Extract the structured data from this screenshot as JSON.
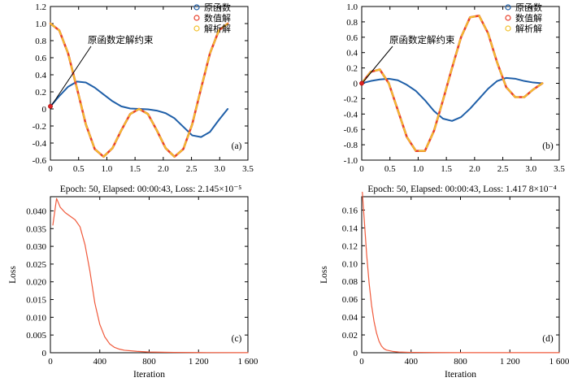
{
  "chart_data": [
    {
      "type": "line",
      "panel_label": "(a)",
      "xlim": [
        0,
        3.5
      ],
      "ylim": [
        -0.6,
        1.2
      ],
      "xticks": [
        0,
        0.5,
        1.0,
        1.5,
        2.0,
        2.5,
        3.0,
        3.5
      ],
      "yticks": [
        -0.6,
        -0.4,
        -0.2,
        0,
        0.2,
        0.4,
        0.6,
        0.8,
        1.0,
        1.2
      ],
      "xtick_labels": [
        "0",
        "0.5",
        "1.0",
        "1.5",
        "2.0",
        "2.5",
        "3.0",
        "3.5"
      ],
      "ytick_labels": [
        "-0.6",
        "-0.4",
        "-0.2",
        "0",
        "0.2",
        "0.4",
        "0.6",
        "0.8",
        "1.0",
        "1.2"
      ],
      "legend": [
        "原函数",
        "数值解",
        "解析解"
      ],
      "legend_position": "top-right",
      "annotation": "原函数定解约束",
      "annotation_point": [
        0,
        0.03
      ],
      "series": [
        {
          "name": "原函数",
          "x": [
            0,
            0.157,
            0.314,
            0.471,
            0.628,
            0.785,
            0.942,
            1.1,
            1.257,
            1.414,
            1.571,
            1.728,
            1.885,
            2.042,
            2.199,
            2.356,
            2.513,
            2.67,
            2.827,
            2.985,
            3.142
          ],
          "values": [
            0.03,
            0.15,
            0.26,
            0.32,
            0.31,
            0.25,
            0.17,
            0.09,
            0.03,
            0.005,
            0.0,
            -0.005,
            -0.02,
            -0.05,
            -0.11,
            -0.21,
            -0.31,
            -0.33,
            -0.27,
            -0.13,
            0.0
          ]
        },
        {
          "name": "数值解",
          "x": [
            0,
            0.157,
            0.314,
            0.471,
            0.628,
            0.785,
            0.942,
            1.1,
            1.257,
            1.414,
            1.571,
            1.728,
            1.885,
            2.042,
            2.199,
            2.356,
            2.513,
            2.67,
            2.827,
            2.985,
            3.142
          ],
          "values": [
            1.0,
            0.92,
            0.65,
            0.24,
            -0.18,
            -0.47,
            -0.56,
            -0.46,
            -0.25,
            -0.06,
            0.0,
            -0.06,
            -0.25,
            -0.46,
            -0.56,
            -0.47,
            -0.18,
            0.24,
            0.65,
            0.92,
            1.0
          ]
        },
        {
          "name": "解析解",
          "x": [
            0,
            0.157,
            0.314,
            0.471,
            0.628,
            0.785,
            0.942,
            1.1,
            1.257,
            1.414,
            1.571,
            1.728,
            1.885,
            2.042,
            2.199,
            2.356,
            2.513,
            2.67,
            2.827,
            2.985,
            3.142
          ],
          "values": [
            1.0,
            0.92,
            0.65,
            0.24,
            -0.18,
            -0.47,
            -0.56,
            -0.46,
            -0.25,
            -0.06,
            0.0,
            -0.06,
            -0.25,
            -0.46,
            -0.56,
            -0.47,
            -0.18,
            0.24,
            0.65,
            0.92,
            1.0
          ]
        }
      ]
    },
    {
      "type": "line",
      "panel_label": "(b)",
      "xlim": [
        0,
        3.5
      ],
      "ylim": [
        -1.0,
        1.0
      ],
      "xticks": [
        0,
        0.5,
        1.0,
        1.5,
        2.0,
        2.5,
        3.0,
        3.5
      ],
      "yticks": [
        -1.0,
        -0.8,
        -0.6,
        -0.4,
        -0.2,
        0,
        0.2,
        0.4,
        0.6,
        0.8,
        1.0
      ],
      "xtick_labels": [
        "0",
        "0.5",
        "1.0",
        "1.5",
        "2.0",
        "2.5",
        "3.0",
        "3.5"
      ],
      "ytick_labels": [
        "-1.0",
        "-0.8",
        "-0.6",
        "-0.4",
        "-0.2",
        "0",
        "0.2",
        "0.4",
        "0.6",
        "0.8",
        "1.0"
      ],
      "legend": [
        "原函数",
        "数值解",
        "解析解"
      ],
      "legend_position": "top-right",
      "annotation": "原函数定解约束",
      "annotation_point": [
        0,
        0.0
      ],
      "series": [
        {
          "name": "原函数",
          "x": [
            0,
            0.16,
            0.32,
            0.48,
            0.64,
            0.8,
            0.96,
            1.12,
            1.28,
            1.44,
            1.6,
            1.76,
            1.92,
            2.08,
            2.24,
            2.4,
            2.56,
            2.72,
            2.88,
            3.04,
            3.2
          ],
          "values": [
            0.0,
            0.03,
            0.05,
            0.06,
            0.04,
            -0.02,
            -0.1,
            -0.22,
            -0.36,
            -0.46,
            -0.49,
            -0.44,
            -0.33,
            -0.2,
            -0.07,
            0.03,
            0.07,
            0.06,
            0.03,
            0.01,
            0.0
          ]
        },
        {
          "name": "数值解",
          "x": [
            0,
            0.16,
            0.32,
            0.48,
            0.64,
            0.8,
            0.96,
            1.12,
            1.28,
            1.44,
            1.6,
            1.76,
            1.92,
            2.08,
            2.24,
            2.4,
            2.56,
            2.72,
            2.88,
            3.04,
            3.2
          ],
          "values": [
            0.0,
            0.15,
            0.18,
            0.0,
            -0.35,
            -0.7,
            -0.88,
            -0.88,
            -0.62,
            -0.22,
            0.2,
            0.6,
            0.86,
            0.88,
            0.65,
            0.27,
            -0.05,
            -0.18,
            -0.18,
            -0.08,
            0.0
          ]
        },
        {
          "name": "解析解",
          "x": [
            0,
            0.16,
            0.32,
            0.48,
            0.64,
            0.8,
            0.96,
            1.12,
            1.28,
            1.44,
            1.6,
            1.76,
            1.92,
            2.08,
            2.24,
            2.4,
            2.56,
            2.72,
            2.88,
            3.04,
            3.2
          ],
          "values": [
            0.0,
            0.15,
            0.18,
            0.0,
            -0.35,
            -0.7,
            -0.88,
            -0.88,
            -0.62,
            -0.22,
            0.2,
            0.6,
            0.86,
            0.88,
            0.65,
            0.27,
            -0.05,
            -0.18,
            -0.18,
            -0.08,
            0.0
          ]
        }
      ]
    },
    {
      "type": "line",
      "panel_label": "(c)",
      "title": "Epoch: 50, Elapsed: 00:00:43, Loss: 2.145×10⁻⁵",
      "xlabel": "Iteration",
      "ylabel": "Loss",
      "xlim": [
        0,
        1600
      ],
      "ylim": [
        0,
        0.044
      ],
      "xticks": [
        0,
        400,
        800,
        1200,
        1600
      ],
      "yticks": [
        0,
        0.005,
        0.01,
        0.015,
        0.02,
        0.025,
        0.03,
        0.035,
        0.04
      ],
      "xtick_labels": [
        "0",
        "400",
        "800",
        "1 200",
        "1 600"
      ],
      "ytick_labels": [
        "0",
        "0.005",
        "0.010",
        "0.015",
        "0.020",
        "0.025",
        "0.030",
        "0.035",
        "0.040"
      ],
      "series": [
        {
          "x": [
            20,
            50,
            80,
            120,
            160,
            200,
            240,
            280,
            320,
            360,
            400,
            440,
            480,
            520,
            560,
            600,
            700,
            800,
            1000,
            1200,
            1600
          ],
          "values": [
            0.036,
            0.0435,
            0.041,
            0.0395,
            0.0385,
            0.0375,
            0.0355,
            0.0305,
            0.023,
            0.014,
            0.008,
            0.0045,
            0.0025,
            0.0015,
            0.001,
            0.0007,
            0.0004,
            0.0002,
            0.0001,
            5e-05,
            2e-05
          ]
        }
      ]
    },
    {
      "type": "line",
      "panel_label": "(d)",
      "title": "Epoch: 50, Elapsed: 00:00:43, Loss: 1.417 8×10⁻⁴",
      "xlabel": "Iteration",
      "ylabel": "Loss",
      "xlim": [
        0,
        1600
      ],
      "ylim": [
        0,
        0.175
      ],
      "xticks": [
        0,
        400,
        800,
        1200,
        1600
      ],
      "yticks": [
        0,
        0.02,
        0.04,
        0.06,
        0.08,
        0.1,
        0.12,
        0.14,
        0.16
      ],
      "xtick_labels": [
        "0",
        "400",
        "800",
        "1 200",
        "1 600"
      ],
      "ytick_labels": [
        "0",
        "0.02",
        "0.04",
        "0.06",
        "0.08",
        "0.10",
        "0.12",
        "0.14",
        "0.16"
      ],
      "series": [
        {
          "x": [
            5,
            20,
            40,
            60,
            80,
            100,
            120,
            140,
            160,
            180,
            200,
            250,
            300,
            400,
            600,
            800,
            1200,
            1600
          ],
          "values": [
            0.18,
            0.15,
            0.11,
            0.078,
            0.053,
            0.035,
            0.022,
            0.013,
            0.0075,
            0.0045,
            0.003,
            0.0015,
            0.0008,
            0.0004,
            0.0002,
            0.0001,
            0.0001,
            0.00014
          ]
        }
      ]
    }
  ],
  "colors": {
    "original": "#1f5fa8",
    "numerical": "#e8412c",
    "analytic": "#f2c12e",
    "loss": "#f05a3c",
    "axis": "#000000"
  }
}
